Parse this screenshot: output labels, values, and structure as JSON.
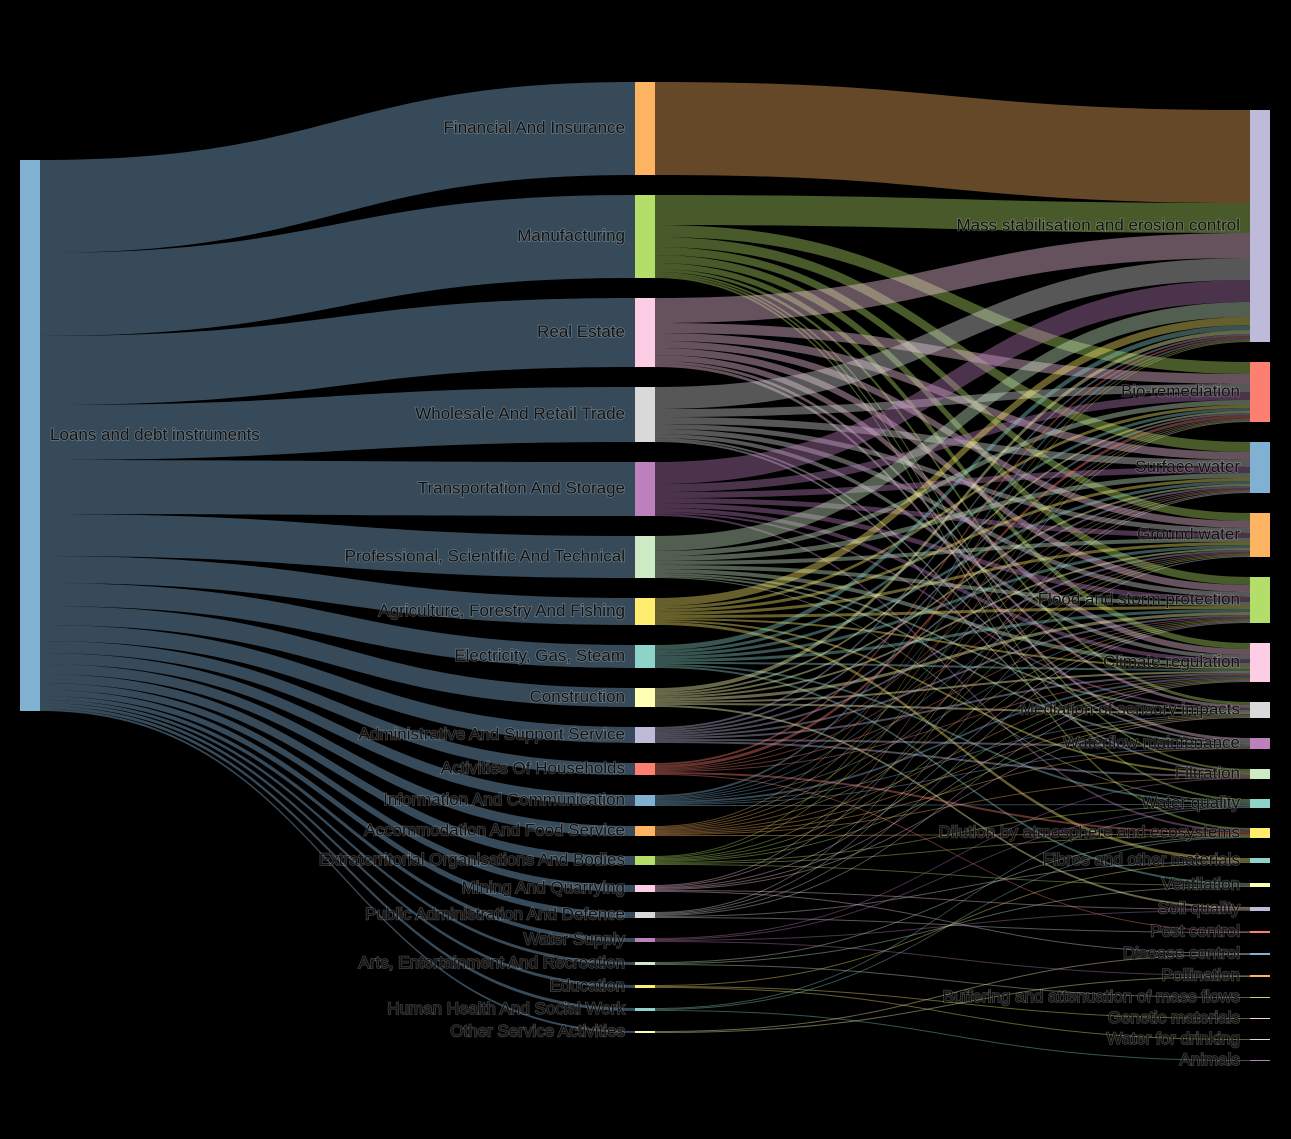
{
  "chart_data": {
    "type": "sankey",
    "nodes": [
      {
        "name": "Loans and debt instruments",
        "color": "#80b1d3"
      },
      {
        "name": "Financial And Insurance",
        "color": "#fdb462"
      },
      {
        "name": "Manufacturing",
        "color": "#b3de69"
      },
      {
        "name": "Real Estate",
        "color": "#fccde5"
      },
      {
        "name": "Wholesale And Retail Trade",
        "color": "#d9d9d9"
      },
      {
        "name": "Transportation And Storage",
        "color": "#bc80bd"
      },
      {
        "name": "Professional, Scientific And Technical",
        "color": "#ccebc5"
      },
      {
        "name": "Agriculture, Forestry And Fishing",
        "color": "#ffed6f"
      },
      {
        "name": "Electricity, Gas, Steam",
        "color": "#8dd3c7"
      },
      {
        "name": "Construction",
        "color": "#ffffb3"
      },
      {
        "name": "Administrative And Support Service",
        "color": "#bebada"
      },
      {
        "name": "Activities Of Households",
        "color": "#fb8072"
      },
      {
        "name": "Information And Communication",
        "color": "#80b1d3"
      },
      {
        "name": "Accommodation And Food Service",
        "color": "#fdb462"
      },
      {
        "name": "Extraterritorial Organisations And Bodies",
        "color": "#b3de69"
      },
      {
        "name": "Mining And Quarrying",
        "color": "#fccde5"
      },
      {
        "name": "Public Administration And Defence",
        "color": "#d9d9d9"
      },
      {
        "name": "Water Supply",
        "color": "#bc80bd"
      },
      {
        "name": "Arts, Entertainment And Recreation",
        "color": "#ccebc5"
      },
      {
        "name": "Education",
        "color": "#ffed6f"
      },
      {
        "name": "Human Health And Social Work",
        "color": "#8dd3c7"
      },
      {
        "name": "Other Service Activities",
        "color": "#ffffb3"
      },
      {
        "name": "Mass stabilisation and erosion control",
        "color": "#bebada"
      },
      {
        "name": "Bio-remediation",
        "color": "#fb8072"
      },
      {
        "name": "Surface water",
        "color": "#80b1d3"
      },
      {
        "name": "Ground water",
        "color": "#fdb462"
      },
      {
        "name": "Flood and storm protection",
        "color": "#b3de69"
      },
      {
        "name": "Climate regulation",
        "color": "#fccde5"
      },
      {
        "name": "Mediation of sensory impacts",
        "color": "#d9d9d9"
      },
      {
        "name": "Waterflow maintenance",
        "color": "#bc80bd"
      },
      {
        "name": "Filtration",
        "color": "#ccebc5"
      },
      {
        "name": "Water quality",
        "color": "#8dd3c7"
      },
      {
        "name": "Dilution by atmosphere and ecosystems",
        "color": "#ffed6f"
      },
      {
        "name": "Fibres and other materials",
        "color": "#8dd3c7"
      },
      {
        "name": "Ventilation",
        "color": "#ffffb3"
      },
      {
        "name": "Soil quality",
        "color": "#bebada"
      },
      {
        "name": "Pest control",
        "color": "#fb8072"
      },
      {
        "name": "Disease control",
        "color": "#80b1d3"
      },
      {
        "name": "Pollination",
        "color": "#fdb462"
      },
      {
        "name": "Buffering and attenuation of mass flows",
        "color": "#b3de69"
      },
      {
        "name": "Genetic materials",
        "color": "#fccde5"
      },
      {
        "name": "Water for drinking",
        "color": "#d9d9d9"
      },
      {
        "name": "Animals",
        "color": "#bc80bd"
      }
    ],
    "links": [
      [
        0,
        1,
        93
      ],
      [
        0,
        2,
        83
      ],
      [
        0,
        3,
        69
      ],
      [
        0,
        4,
        55
      ],
      [
        0,
        5,
        54
      ],
      [
        0,
        6,
        42
      ],
      [
        0,
        7,
        27
      ],
      [
        0,
        8,
        23
      ],
      [
        0,
        9,
        19
      ],
      [
        0,
        10,
        16
      ],
      [
        0,
        11,
        12
      ],
      [
        0,
        12,
        11
      ],
      [
        0,
        13,
        10
      ],
      [
        0,
        14,
        9
      ],
      [
        0,
        15,
        7
      ],
      [
        0,
        16,
        6
      ],
      [
        0,
        17,
        4
      ],
      [
        0,
        18,
        3
      ],
      [
        0,
        19,
        3
      ],
      [
        0,
        20,
        3
      ],
      [
        0,
        21,
        2
      ],
      [
        1,
        22,
        93
      ],
      [
        2,
        22,
        30
      ],
      [
        2,
        23,
        12
      ],
      [
        2,
        24,
        10
      ],
      [
        2,
        25,
        8
      ],
      [
        2,
        26,
        8
      ],
      [
        2,
        27,
        6
      ],
      [
        2,
        28,
        3
      ],
      [
        2,
        30,
        2
      ],
      [
        2,
        31,
        2
      ],
      [
        2,
        32,
        2
      ],
      [
        3,
        22,
        25
      ],
      [
        3,
        23,
        10
      ],
      [
        3,
        24,
        8
      ],
      [
        3,
        25,
        7
      ],
      [
        3,
        26,
        7
      ],
      [
        3,
        27,
        6
      ],
      [
        3,
        28,
        3
      ],
      [
        3,
        29,
        3
      ],
      [
        4,
        22,
        22
      ],
      [
        4,
        23,
        8
      ],
      [
        4,
        24,
        7
      ],
      [
        4,
        25,
        5
      ],
      [
        4,
        26,
        5
      ],
      [
        4,
        27,
        4
      ],
      [
        4,
        29,
        2
      ],
      [
        4,
        30,
        2
      ],
      [
        5,
        22,
        22
      ],
      [
        5,
        23,
        8
      ],
      [
        5,
        24,
        6
      ],
      [
        5,
        25,
        5
      ],
      [
        5,
        26,
        5
      ],
      [
        5,
        27,
        4
      ],
      [
        5,
        28,
        2
      ],
      [
        5,
        32,
        2
      ],
      [
        6,
        22,
        15
      ],
      [
        6,
        23,
        5
      ],
      [
        6,
        24,
        5
      ],
      [
        6,
        25,
        4
      ],
      [
        6,
        26,
        4
      ],
      [
        6,
        27,
        4
      ],
      [
        6,
        28,
        2
      ],
      [
        6,
        29,
        2
      ],
      [
        6,
        31,
        1
      ],
      [
        7,
        22,
        8
      ],
      [
        7,
        23,
        3
      ],
      [
        7,
        24,
        3
      ],
      [
        7,
        25,
        3
      ],
      [
        7,
        26,
        3
      ],
      [
        7,
        27,
        2
      ],
      [
        7,
        30,
        2
      ],
      [
        7,
        33,
        3
      ],
      [
        8,
        22,
        5
      ],
      [
        8,
        23,
        3
      ],
      [
        8,
        24,
        3
      ],
      [
        8,
        25,
        3
      ],
      [
        8,
        26,
        3
      ],
      [
        8,
        27,
        2
      ],
      [
        8,
        34,
        2
      ],
      [
        8,
        31,
        2
      ],
      [
        9,
        22,
        4
      ],
      [
        9,
        23,
        2
      ],
      [
        9,
        24,
        2
      ],
      [
        9,
        25,
        2
      ],
      [
        9,
        26,
        3
      ],
      [
        9,
        27,
        2
      ],
      [
        9,
        28,
        2
      ],
      [
        9,
        35,
        2
      ],
      [
        10,
        22,
        2
      ],
      [
        10,
        23,
        2
      ],
      [
        10,
        24,
        2
      ],
      [
        10,
        25,
        2
      ],
      [
        10,
        26,
        2
      ],
      [
        10,
        27,
        2
      ],
      [
        10,
        29,
        2
      ],
      [
        10,
        30,
        2
      ],
      [
        11,
        22,
        2
      ],
      [
        11,
        23,
        3
      ],
      [
        11,
        24,
        1
      ],
      [
        11,
        25,
        1
      ],
      [
        11,
        26,
        1
      ],
      [
        11,
        27,
        1
      ],
      [
        11,
        36,
        1
      ],
      [
        11,
        32,
        2
      ],
      [
        12,
        22,
        2
      ],
      [
        12,
        23,
        1
      ],
      [
        12,
        24,
        1
      ],
      [
        12,
        25,
        1
      ],
      [
        12,
        26,
        1
      ],
      [
        12,
        27,
        2
      ],
      [
        12,
        28,
        1
      ],
      [
        12,
        29,
        1
      ],
      [
        12,
        31,
        1
      ],
      [
        13,
        22,
        1
      ],
      [
        13,
        23,
        1
      ],
      [
        13,
        24,
        1
      ],
      [
        13,
        25,
        1
      ],
      [
        13,
        26,
        1
      ],
      [
        13,
        27,
        1
      ],
      [
        13,
        30,
        1
      ],
      [
        13,
        32,
        1
      ],
      [
        13,
        28,
        1
      ],
      [
        13,
        29,
        1
      ],
      [
        14,
        22,
        1
      ],
      [
        14,
        23,
        1
      ],
      [
        14,
        25,
        1
      ],
      [
        14,
        26,
        1
      ],
      [
        14,
        27,
        1
      ],
      [
        14,
        28,
        1
      ],
      [
        14,
        31,
        1
      ],
      [
        14,
        32,
        1
      ],
      [
        14,
        34,
        1
      ],
      [
        15,
        23,
        1
      ],
      [
        15,
        24,
        1
      ],
      [
        15,
        26,
        1
      ],
      [
        15,
        27,
        1
      ],
      [
        15,
        28,
        1
      ],
      [
        15,
        35,
        1
      ],
      [
        15,
        37,
        1
      ],
      [
        16,
        24,
        1
      ],
      [
        16,
        25,
        1
      ],
      [
        16,
        26,
        1
      ],
      [
        16,
        27,
        1
      ],
      [
        16,
        33,
        1
      ],
      [
        16,
        36,
        1
      ],
      [
        17,
        31,
        1
      ],
      [
        17,
        30,
        1
      ],
      [
        17,
        38,
        1
      ],
      [
        17,
        35,
        1
      ],
      [
        18,
        32,
        1
      ],
      [
        18,
        34,
        1
      ],
      [
        18,
        39,
        1
      ],
      [
        19,
        40,
        1
      ],
      [
        19,
        41,
        1
      ],
      [
        19,
        33,
        1
      ],
      [
        20,
        31,
        1
      ],
      [
        20,
        32,
        1
      ],
      [
        20,
        42,
        1
      ],
      [
        21,
        37,
        1
      ],
      [
        21,
        38,
        1
      ]
    ]
  }
}
